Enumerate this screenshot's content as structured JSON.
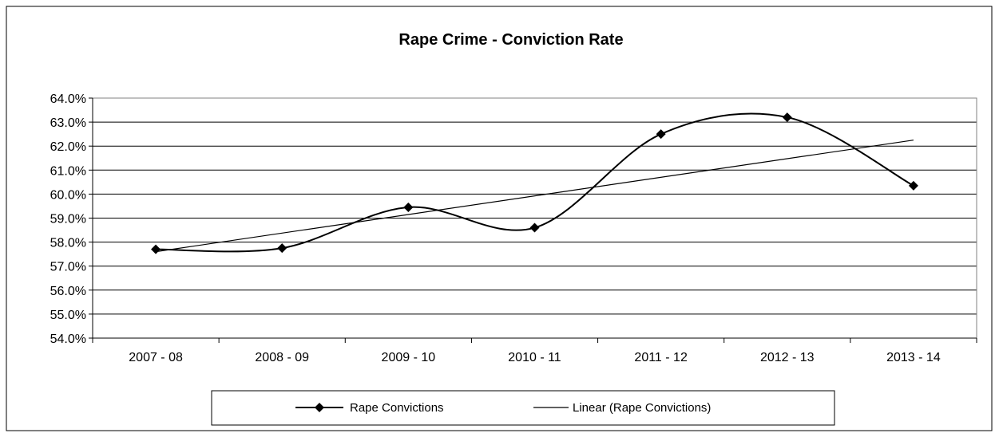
{
  "chart_data": {
    "type": "line",
    "title": "Rape Crime - Conviction Rate",
    "xlabel": "",
    "ylabel": "",
    "categories": [
      "2007 - 08",
      "2008 - 09",
      "2009 - 10",
      "2010 - 11",
      "2011 - 12",
      "2012 - 13",
      "2013 - 14"
    ],
    "series": [
      {
        "name": "Rape Convictions",
        "values": [
          57.7,
          57.75,
          59.45,
          58.6,
          62.5,
          63.2,
          60.35
        ],
        "marker": "diamond",
        "smooth": true,
        "color": "#000000"
      }
    ],
    "trendline": {
      "name": "Linear (Rape Convictions)",
      "type": "linear",
      "start": 57.6,
      "end": 62.25,
      "color": "#000000"
    },
    "ylim": [
      54.0,
      64.0
    ],
    "yticks": [
      "54.0%",
      "55.0%",
      "56.0%",
      "57.0%",
      "58.0%",
      "59.0%",
      "60.0%",
      "61.0%",
      "62.0%",
      "63.0%",
      "64.0%"
    ],
    "grid": true,
    "legend_position": "bottom"
  }
}
